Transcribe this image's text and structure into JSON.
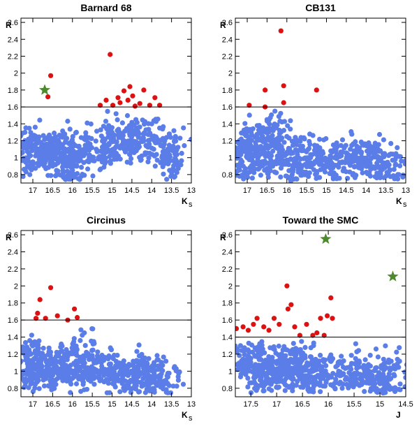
{
  "colors": {
    "blue": "#5b7de8",
    "red": "#dd1111",
    "green": "#4d8a2c",
    "line": "#000000"
  },
  "chart_data": [
    {
      "type": "scatter",
      "title": "Barnard 68",
      "xlabel": "K",
      "xlabel_sub": "s",
      "ylabel": "R",
      "xlim": [
        17.3,
        13.0
      ],
      "ylim": [
        0.7,
        2.65
      ],
      "xticks": [
        17,
        16.5,
        16,
        15.5,
        15,
        14.5,
        14,
        13.5,
        13
      ],
      "yticks": [
        0.8,
        1,
        1.2,
        1.4,
        1.6,
        1.8,
        2,
        2.2,
        2.4,
        2.6
      ],
      "threshold": 1.6,
      "outliers": [
        [
          16.55,
          1.97
        ],
        [
          16.62,
          1.72
        ],
        [
          15.05,
          2.22
        ],
        [
          15.3,
          1.62
        ],
        [
          15.15,
          1.68
        ],
        [
          14.98,
          1.62
        ],
        [
          14.85,
          1.71
        ],
        [
          14.8,
          1.65
        ],
        [
          14.7,
          1.79
        ],
        [
          14.6,
          1.68
        ],
        [
          14.55,
          1.84
        ],
        [
          14.48,
          1.73
        ],
        [
          14.42,
          1.61
        ],
        [
          14.3,
          1.64
        ],
        [
          14.2,
          1.8
        ],
        [
          14.05,
          1.62
        ],
        [
          13.92,
          1.71
        ],
        [
          13.8,
          1.62
        ]
      ],
      "special": [
        [
          16.7,
          1.8
        ]
      ],
      "bulk": [
        [
          17.2,
          1.3
        ],
        [
          17.1,
          1.05
        ],
        [
          17.0,
          0.95
        ],
        [
          16.9,
          1.2
        ],
        [
          16.8,
          1.1
        ],
        [
          16.7,
          1.0
        ],
        [
          16.6,
          1.15
        ],
        [
          16.5,
          0.9
        ],
        [
          16.4,
          1.05
        ],
        [
          16.3,
          1.25
        ],
        [
          16.2,
          0.98
        ],
        [
          16.1,
          1.1
        ],
        [
          16.0,
          0.85
        ],
        [
          15.9,
          1.3
        ],
        [
          15.8,
          1.0
        ],
        [
          15.6,
          1.15
        ],
        [
          15.4,
          1.1
        ],
        [
          15.2,
          1.2
        ],
        [
          15.0,
          1.3
        ],
        [
          14.8,
          1.25
        ],
        [
          14.6,
          1.35
        ],
        [
          14.4,
          1.45
        ],
        [
          14.2,
          1.2
        ],
        [
          14.0,
          1.4
        ],
        [
          13.8,
          1.35
        ],
        [
          13.6,
          1.1
        ],
        [
          13.4,
          1.25
        ],
        [
          13.55,
          0.85
        ],
        [
          16.05,
          0.78
        ],
        [
          14.9,
          1.52
        ]
      ]
    },
    {
      "type": "scatter",
      "title": "CB131",
      "xlabel": "K",
      "xlabel_sub": "s",
      "ylabel": "R",
      "xlim": [
        17.3,
        13.0
      ],
      "ylim": [
        0.7,
        2.65
      ],
      "xticks": [
        17,
        16.5,
        16,
        15.5,
        15,
        14.5,
        14,
        13.5,
        13
      ],
      "yticks": [
        0.8,
        1,
        1.2,
        1.4,
        1.6,
        1.8,
        2,
        2.2,
        2.4,
        2.6
      ],
      "threshold": 1.6,
      "outliers": [
        [
          16.95,
          1.62
        ],
        [
          16.55,
          1.8
        ],
        [
          16.55,
          1.6
        ],
        [
          16.15,
          2.5
        ],
        [
          16.08,
          1.85
        ],
        [
          16.08,
          1.65
        ],
        [
          15.25,
          1.8
        ]
      ],
      "special": [],
      "bulk": [
        [
          17.2,
          1.2
        ],
        [
          17.1,
          0.9
        ],
        [
          17.0,
          1.0
        ],
        [
          16.9,
          1.3
        ],
        [
          16.8,
          1.05
        ],
        [
          16.6,
          0.95
        ],
        [
          16.4,
          1.15
        ],
        [
          16.2,
          1.0
        ],
        [
          16.0,
          1.25
        ],
        [
          15.8,
          0.95
        ],
        [
          15.6,
          1.1
        ],
        [
          15.4,
          1.0
        ],
        [
          15.2,
          1.05
        ],
        [
          15.0,
          0.9
        ],
        [
          14.8,
          1.0
        ],
        [
          14.6,
          0.95
        ],
        [
          14.4,
          1.1
        ],
        [
          14.2,
          0.9
        ],
        [
          14.0,
          0.95
        ],
        [
          13.8,
          1.05
        ],
        [
          13.6,
          0.9
        ],
        [
          13.4,
          0.85
        ],
        [
          13.2,
          0.8
        ],
        [
          16.5,
          1.45
        ],
        [
          15.9,
          0.72
        ],
        [
          16.3,
          1.55
        ]
      ]
    },
    {
      "type": "scatter",
      "title": "Circinus",
      "xlabel": "K",
      "xlabel_sub": "s",
      "ylabel": "R",
      "xlim": [
        17.3,
        13.0
      ],
      "ylim": [
        0.7,
        2.65
      ],
      "xticks": [
        17,
        16.5,
        16,
        15.5,
        15,
        14.5,
        14,
        13.5,
        13
      ],
      "yticks": [
        0.8,
        1,
        1.2,
        1.4,
        1.6,
        1.8,
        2,
        2.2,
        2.4,
        2.6
      ],
      "threshold": 1.6,
      "outliers": [
        [
          16.92,
          1.62
        ],
        [
          16.88,
          1.68
        ],
        [
          16.82,
          1.84
        ],
        [
          16.68,
          1.62
        ],
        [
          16.55,
          1.98
        ],
        [
          16.38,
          1.65
        ],
        [
          16.12,
          1.6
        ],
        [
          15.95,
          1.73
        ],
        [
          15.88,
          1.63
        ]
      ],
      "special": [],
      "bulk": [
        [
          17.2,
          1.2
        ],
        [
          17.1,
          0.9
        ],
        [
          17.0,
          1.1
        ],
        [
          16.9,
          1.3
        ],
        [
          16.8,
          1.0
        ],
        [
          16.7,
          1.15
        ],
        [
          16.5,
          0.95
        ],
        [
          16.4,
          1.05
        ],
        [
          16.2,
          1.2
        ],
        [
          16.0,
          1.0
        ],
        [
          15.8,
          1.05
        ],
        [
          15.6,
          0.95
        ],
        [
          15.4,
          1.1
        ],
        [
          15.2,
          1.0
        ],
        [
          15.0,
          0.95
        ],
        [
          14.8,
          1.05
        ],
        [
          14.6,
          0.95
        ],
        [
          14.4,
          0.9
        ],
        [
          14.2,
          1.0
        ],
        [
          14.0,
          0.9
        ],
        [
          13.8,
          0.95
        ],
        [
          13.6,
          0.85
        ],
        [
          15.7,
          1.45
        ]
      ]
    },
    {
      "type": "scatter",
      "title": "Toward the SMC",
      "xlabel": "J",
      "xlabel_sub": "",
      "ylabel": "R",
      "xlim": [
        17.8,
        14.5
      ],
      "ylim": [
        0.7,
        2.65
      ],
      "xticks": [
        17.5,
        17,
        16.5,
        16,
        15.5,
        15,
        14.5
      ],
      "yticks": [
        0.8,
        1,
        1.2,
        1.4,
        1.6,
        1.8,
        2,
        2.2,
        2.4,
        2.6
      ],
      "threshold": 1.4,
      "outliers": [
        [
          17.78,
          1.5
        ],
        [
          17.65,
          1.52
        ],
        [
          17.55,
          1.48
        ],
        [
          17.45,
          1.55
        ],
        [
          17.38,
          1.62
        ],
        [
          17.25,
          1.52
        ],
        [
          17.15,
          1.48
        ],
        [
          17.05,
          1.62
        ],
        [
          16.95,
          1.55
        ],
        [
          16.8,
          2.0
        ],
        [
          16.78,
          1.73
        ],
        [
          16.72,
          1.78
        ],
        [
          16.65,
          1.52
        ],
        [
          16.55,
          1.42
        ],
        [
          16.42,
          1.55
        ],
        [
          16.3,
          1.42
        ],
        [
          16.22,
          1.45
        ],
        [
          16.15,
          1.62
        ],
        [
          16.08,
          1.42
        ],
        [
          16.02,
          1.65
        ],
        [
          15.95,
          1.86
        ],
        [
          15.92,
          1.62
        ]
      ],
      "special": [
        [
          16.05,
          2.55
        ],
        [
          14.75,
          2.11
        ]
      ],
      "bulk": [
        [
          17.7,
          1.3
        ],
        [
          17.6,
          1.0
        ],
        [
          17.5,
          1.15
        ],
        [
          17.4,
          0.95
        ],
        [
          17.3,
          1.2
        ],
        [
          17.2,
          1.05
        ],
        [
          17.1,
          0.9
        ],
        [
          17.0,
          1.1
        ],
        [
          16.9,
          1.0
        ],
        [
          16.8,
          1.25
        ],
        [
          16.7,
          0.95
        ],
        [
          16.6,
          1.05
        ],
        [
          16.5,
          1.15
        ],
        [
          16.4,
          0.9
        ],
        [
          16.3,
          1.0
        ],
        [
          16.2,
          1.1
        ],
        [
          16.0,
          0.95
        ],
        [
          15.8,
          1.0
        ],
        [
          15.6,
          0.9
        ],
        [
          15.4,
          1.05
        ],
        [
          15.2,
          0.95
        ],
        [
          15.1,
          0.85
        ],
        [
          14.95,
          0.78
        ],
        [
          14.9,
          0.88
        ],
        [
          14.7,
          1.05
        ]
      ]
    }
  ]
}
